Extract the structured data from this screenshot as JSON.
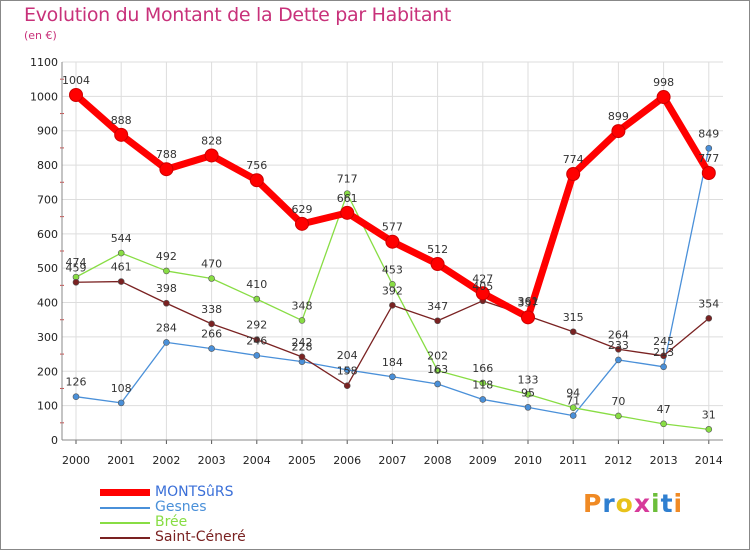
{
  "title": "Evolution du Montant de la Dette par Habitant",
  "unit_label": "(en €)",
  "logo_text": "Proxiti",
  "chart_data": {
    "type": "line",
    "title": "Evolution du Montant de la Dette par Habitant",
    "ylabel": "(en €)",
    "xlabel": "",
    "x": [
      "2000",
      "2001",
      "2002",
      "2003",
      "2004",
      "2005",
      "2006",
      "2007",
      "2008",
      "2009",
      "2010",
      "2011",
      "2012",
      "2013",
      "2014"
    ],
    "ylim": [
      0,
      1100
    ],
    "yticks": [
      0,
      100,
      200,
      300,
      400,
      500,
      600,
      700,
      800,
      900,
      1000,
      1100
    ],
    "grid": true,
    "legend_position": "bottom-left",
    "series": [
      {
        "name": "MONTSûRS",
        "color": "#ff0000",
        "values": [
          1004,
          888,
          788,
          828,
          756,
          629,
          661,
          577,
          512,
          427,
          357,
          774,
          899,
          998,
          777
        ],
        "labels": [
          "1004",
          "888",
          "788",
          "828",
          "756",
          "629",
          "661",
          "577",
          "512",
          "427",
          "357",
          "774",
          "899",
          "998",
          "777"
        ]
      },
      {
        "name": "Gesnes",
        "color": "#4a90d9",
        "values": [
          126,
          108,
          284,
          266,
          246,
          228,
          204,
          184,
          163,
          118,
          95,
          71,
          233,
          213,
          849
        ],
        "labels": [
          "126",
          "108",
          "284",
          "266",
          "246",
          "228",
          "204",
          "184",
          "163",
          "118",
          "95",
          "71",
          "233",
          "213",
          "849"
        ]
      },
      {
        "name": "Brée",
        "color": "#88dd44",
        "values": [
          474,
          544,
          492,
          470,
          410,
          348,
          717,
          453,
          202,
          166,
          133,
          94,
          70,
          47,
          31
        ],
        "labels": [
          "474",
          "544",
          "492",
          "470",
          "410",
          "348",
          "717",
          "453",
          "202",
          "166",
          "133",
          "94",
          "70",
          "47",
          "31"
        ]
      },
      {
        "name": "Saint-Céneré",
        "color": "#7a2222",
        "values": [
          459,
          461,
          398,
          338,
          292,
          242,
          158,
          392,
          347,
          405,
          361,
          315,
          264,
          245,
          354
        ],
        "labels": [
          "459",
          "461",
          "398",
          "338",
          "292",
          "242",
          "158",
          "392",
          "347",
          "405",
          "361",
          "315",
          "264",
          "245",
          "354"
        ]
      }
    ]
  }
}
